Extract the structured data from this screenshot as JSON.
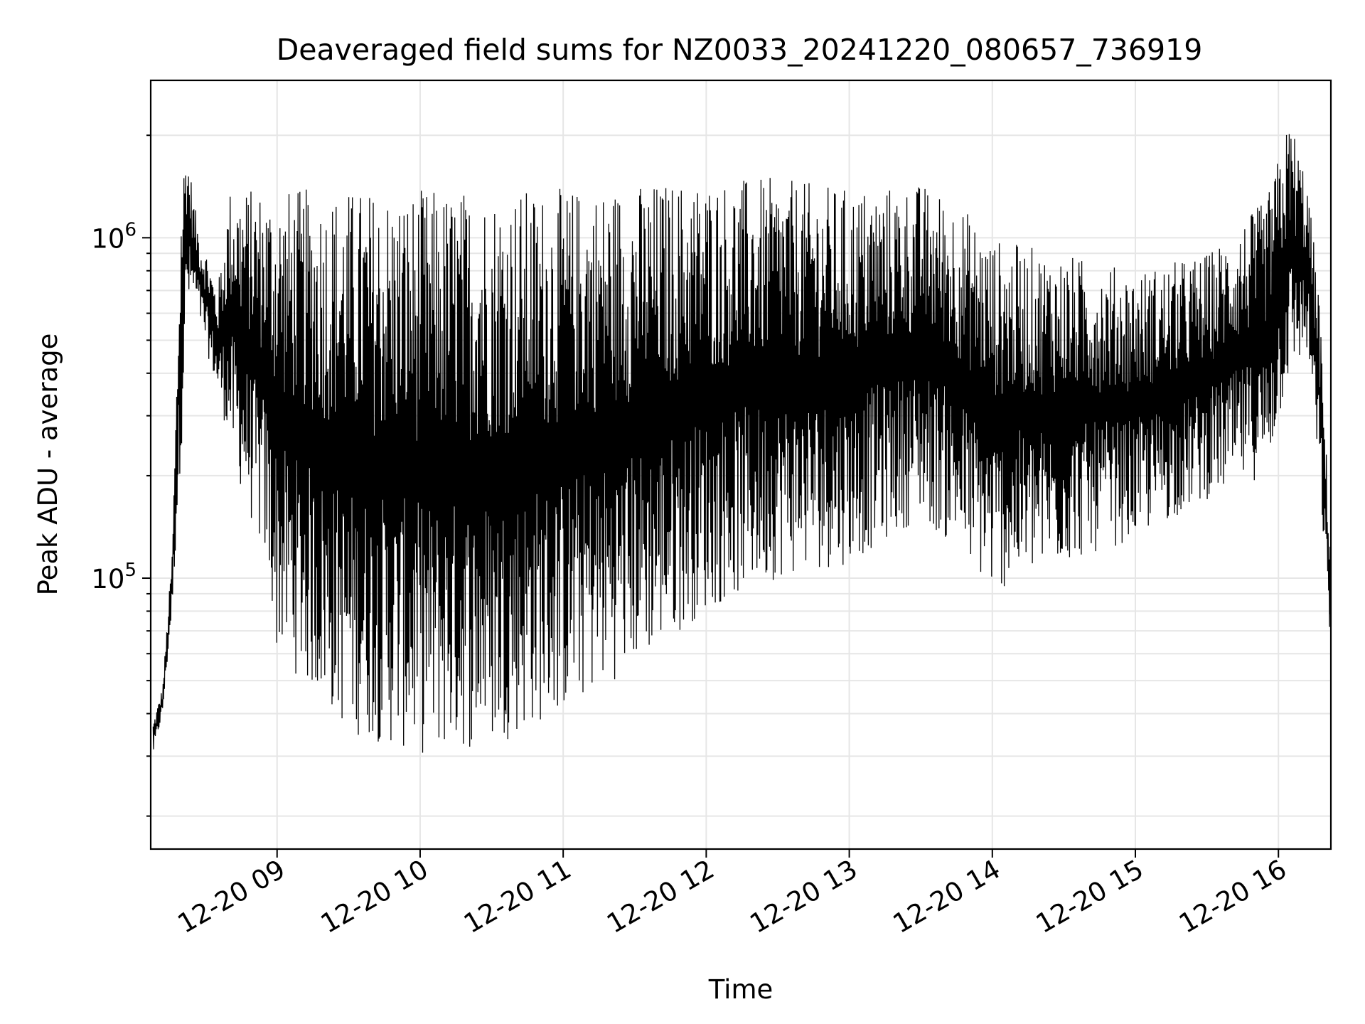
{
  "chart_data": {
    "type": "line",
    "title": "Deaveraged field sums for NZ0033_20241220_080657_736919",
    "xlabel": "Time",
    "ylabel": "Peak ADU - average",
    "x_range": [
      "2024-12-20 08:07",
      "2024-12-20 16:22"
    ],
    "y_range": [
      16000,
      2900000
    ],
    "y_scale": "log",
    "grid": true,
    "x_ticks": [
      {
        "at": "2024-12-20 09:00",
        "label": "12-20 09"
      },
      {
        "at": "2024-12-20 10:00",
        "label": "12-20 10"
      },
      {
        "at": "2024-12-20 11:00",
        "label": "12-20 11"
      },
      {
        "at": "2024-12-20 12:00",
        "label": "12-20 12"
      },
      {
        "at": "2024-12-20 13:00",
        "label": "12-20 13"
      },
      {
        "at": "2024-12-20 14:00",
        "label": "12-20 14"
      },
      {
        "at": "2024-12-20 15:00",
        "label": "12-20 15"
      },
      {
        "at": "2024-12-20 16:00",
        "label": "12-20 16"
      }
    ],
    "y_ticks": [
      {
        "value": 100000,
        "base": "10",
        "exp": "5"
      },
      {
        "value": 1000000,
        "base": "10",
        "exp": "6"
      }
    ],
    "series_color": "#000000",
    "series": [
      {
        "x": [
          "2024-12-20 08:08",
          "2024-12-20 08:12",
          "2024-12-20 08:16",
          "2024-12-20 08:20",
          "2024-12-20 08:22",
          "2024-12-20 08:25",
          "2024-12-20 08:28",
          "2024-12-20 08:31",
          "2024-12-20 08:35",
          "2024-12-20 08:40",
          "2024-12-20 08:45",
          "2024-12-20 08:50",
          "2024-12-20 08:55",
          "2024-12-20 09:00",
          "2024-12-20 09:30",
          "2024-12-20 10:00",
          "2024-12-20 10:30",
          "2024-12-20 11:00",
          "2024-12-20 11:30",
          "2024-12-20 12:00",
          "2024-12-20 12:30",
          "2024-12-20 13:00",
          "2024-12-20 13:30",
          "2024-12-20 13:45",
          "2024-12-20 14:00",
          "2024-12-20 14:30",
          "2024-12-20 15:00",
          "2024-12-20 15:30",
          "2024-12-20 15:55",
          "2024-12-20 16:05",
          "2024-12-20 16:12",
          "2024-12-20 16:17",
          "2024-12-20 16:22"
        ],
        "y_low": [
          30000,
          40000,
          80000,
          250000,
          600000,
          650000,
          550000,
          450000,
          350000,
          250000,
          180000,
          140000,
          110000,
          60000,
          35000,
          30000,
          32000,
          40000,
          55000,
          80000,
          100000,
          110000,
          150000,
          120000,
          90000,
          110000,
          130000,
          170000,
          200000,
          400000,
          450000,
          200000,
          60000
        ],
        "y_high": [
          38000,
          48000,
          120000,
          1500000,
          2000000,
          1300000,
          1000000,
          900000,
          700000,
          1400000,
          1400000,
          1400000,
          1400000,
          1400000,
          1400000,
          1400000,
          1400000,
          1400000,
          1450000,
          1500000,
          1500000,
          1400000,
          1450000,
          1300000,
          1000000,
          900000,
          800000,
          900000,
          1300000,
          2300000,
          1500000,
          700000,
          120000
        ]
      }
    ]
  }
}
